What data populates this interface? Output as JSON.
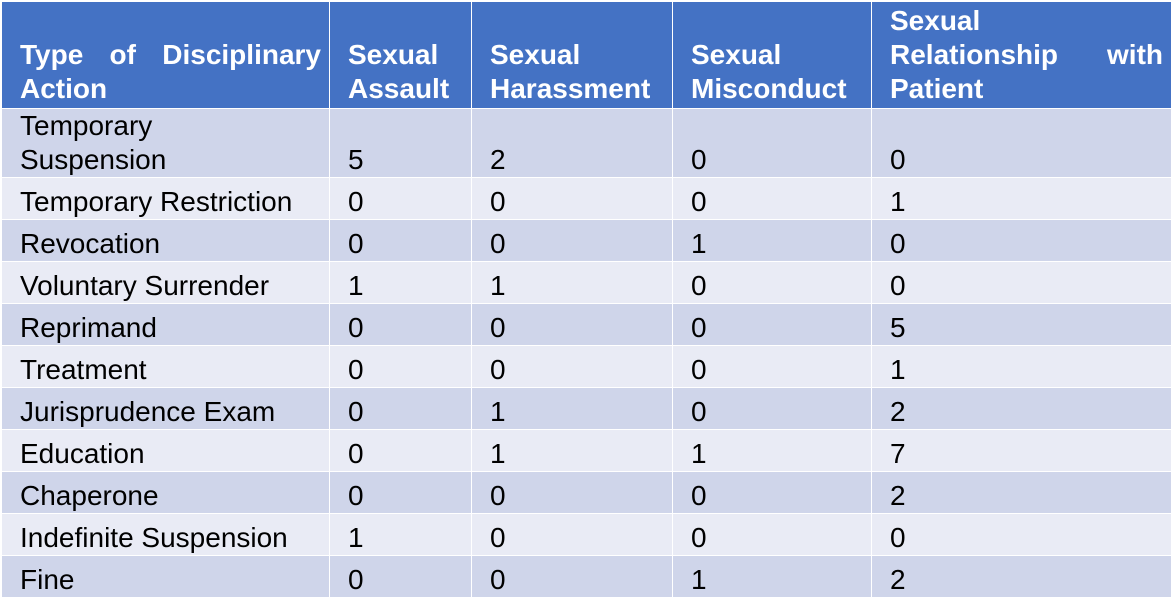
{
  "table": {
    "headers": [
      {
        "lines": [
          "Type of Disciplinary",
          "Action"
        ]
      },
      {
        "lines": [
          "Sexual",
          "Assault"
        ]
      },
      {
        "lines": [
          "Sexual",
          "Harassment"
        ]
      },
      {
        "lines": [
          "Sexual",
          "Misconduct"
        ]
      },
      {
        "lines": [
          "Sexual",
          "Relationship with",
          "Patient"
        ]
      }
    ],
    "rows": [
      {
        "action_lines": [
          "Temporary",
          "Suspension"
        ],
        "values": [
          "5",
          "2",
          "0",
          "0"
        ]
      },
      {
        "action_lines": [
          "Temporary Restriction"
        ],
        "values": [
          "0",
          "0",
          "0",
          "1"
        ]
      },
      {
        "action_lines": [
          "Revocation"
        ],
        "values": [
          "0",
          "0",
          "1",
          "0"
        ]
      },
      {
        "action_lines": [
          "Voluntary Surrender"
        ],
        "values": [
          "1",
          "1",
          "0",
          "0"
        ]
      },
      {
        "action_lines": [
          "Reprimand"
        ],
        "values": [
          "0",
          "0",
          "0",
          "5"
        ]
      },
      {
        "action_lines": [
          "Treatment"
        ],
        "values": [
          "0",
          "0",
          "0",
          "1"
        ]
      },
      {
        "action_lines": [
          "Jurisprudence Exam"
        ],
        "values": [
          "0",
          "1",
          "0",
          "2"
        ]
      },
      {
        "action_lines": [
          "Education"
        ],
        "values": [
          "0",
          "1",
          "1",
          "7"
        ]
      },
      {
        "action_lines": [
          "Chaperone"
        ],
        "values": [
          "0",
          "0",
          "0",
          "2"
        ]
      },
      {
        "action_lines": [
          "Indefinite Suspension"
        ],
        "values": [
          "1",
          "0",
          "0",
          "0"
        ]
      },
      {
        "action_lines": [
          "Fine"
        ],
        "values": [
          "0",
          "0",
          "1",
          "2"
        ]
      }
    ]
  },
  "colors": {
    "header_bg": "#4472c4",
    "header_text": "#ffffff",
    "row_odd_bg": "#cfd5ea",
    "row_even_bg": "#e9ebf5",
    "cell_border": "#ffffff"
  }
}
